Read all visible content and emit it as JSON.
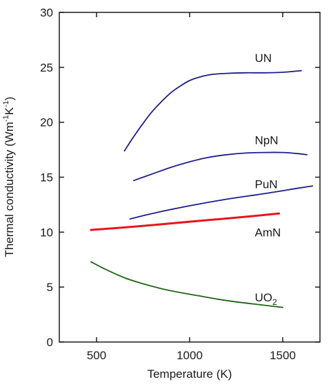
{
  "chart_data": {
    "type": "line",
    "xlabel": "Temperature  (K)",
    "ylabel_parts": {
      "main": "Thermal conductivity  (Wm",
      "sup1": "-1",
      "mid": "K",
      "sup2": "-1",
      "close": ")"
    },
    "xlim": [
      300,
      1700
    ],
    "ylim": [
      0,
      30
    ],
    "xticks": [
      500,
      1000,
      1500
    ],
    "yticks": [
      0,
      5,
      10,
      15,
      20,
      25,
      30
    ],
    "grid": false,
    "legend": "inline labels",
    "series": [
      {
        "name": "UN",
        "color": "#1c1c8c",
        "label_at": [
          1350,
          25.5
        ],
        "x": [
          650,
          700,
          750,
          800,
          850,
          900,
          950,
          1000,
          1050,
          1100,
          1150,
          1200,
          1300,
          1400,
          1500,
          1600
        ],
        "y": [
          17.4,
          18.7,
          19.9,
          21.0,
          21.9,
          22.7,
          23.3,
          23.8,
          24.1,
          24.3,
          24.4,
          24.45,
          24.5,
          24.5,
          24.55,
          24.7
        ]
      },
      {
        "name": "NpN",
        "color": "#1c1c8c",
        "label_at": [
          1350,
          18.0
        ],
        "x": [
          700,
          800,
          900,
          1000,
          1100,
          1200,
          1300,
          1400,
          1500,
          1580,
          1630
        ],
        "y": [
          14.7,
          15.3,
          15.9,
          16.4,
          16.8,
          17.05,
          17.2,
          17.25,
          17.25,
          17.15,
          17.05
        ]
      },
      {
        "name": "PuN",
        "color": "#1c1c8c",
        "label_at": [
          1350,
          14.0
        ],
        "x": [
          680,
          800,
          1000,
          1200,
          1400,
          1600,
          1660
        ],
        "y": [
          11.2,
          11.7,
          12.4,
          13.0,
          13.5,
          14.05,
          14.2
        ]
      },
      {
        "name": "AmN",
        "color": "#e8141e",
        "label_at": [
          1350,
          9.6
        ],
        "x": [
          470,
          700,
          900,
          1100,
          1300,
          1480
        ],
        "y": [
          10.2,
          10.5,
          10.8,
          11.1,
          11.4,
          11.7
        ]
      },
      {
        "name_main": "UO",
        "name_sub": "2",
        "color": "#1e6414",
        "label_at": [
          1350,
          3.7
        ],
        "x": [
          470,
          550,
          650,
          750,
          850,
          950,
          1050,
          1150,
          1250,
          1350,
          1450,
          1500
        ],
        "y": [
          7.3,
          6.6,
          5.85,
          5.3,
          4.85,
          4.5,
          4.2,
          3.9,
          3.65,
          3.45,
          3.25,
          3.15
        ]
      }
    ]
  }
}
